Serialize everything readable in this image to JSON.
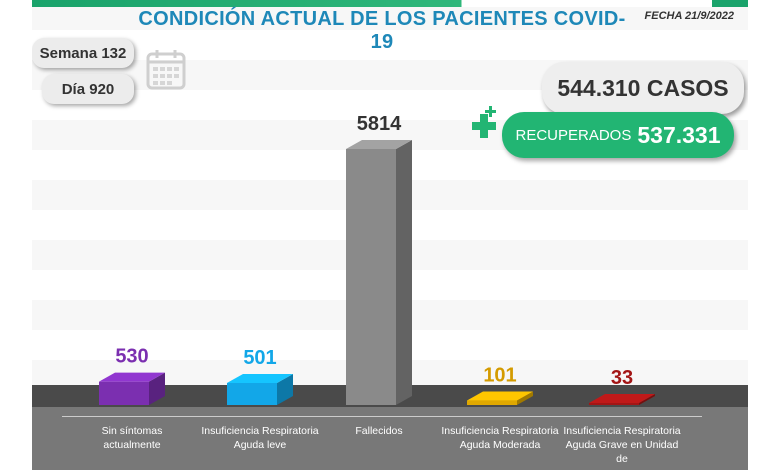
{
  "header": {
    "title": "CONDICIÓN ACTUAL DE LOS PACIENTES COVID-19",
    "fecha": "FECHA 21/9/2022"
  },
  "counters": {
    "semana": "Semana 132",
    "dia": "Día 920"
  },
  "totals": {
    "casos": "544.310 CASOS",
    "recuperados_label": "RECUPERADOS",
    "recuperados_value": "537.331"
  },
  "icons": {
    "calendar": "calendar-icon",
    "plus": "medical-plus-icon"
  },
  "colors": {
    "title": "#1e88b8",
    "recuperados": "#22b573"
  },
  "chart_data": {
    "type": "bar",
    "title": "",
    "xlabel": "",
    "ylabel": "",
    "categories": [
      "Sin síntomas actualmente",
      "Insuficiencia Respiratoria Aguda leve",
      "Fallecidos",
      "Insuficiencia Respiratoria Aguda Moderada",
      "Insuficiencia Respiratoria Aguda Grave en Unidad de"
    ],
    "values": [
      530,
      501,
      5814,
      101,
      33
    ],
    "value_labels": [
      "530",
      "501",
      "5814",
      "101",
      "33"
    ],
    "colors": [
      "#7b2fb0",
      "#12a7e8",
      "#8a8a8a",
      "#e0a800",
      "#a31515"
    ],
    "label_colors": [
      "#7b2fb0",
      "#12a7e8",
      "#333333",
      "#d49b00",
      "#a31515"
    ],
    "ylim": [
      0,
      5814
    ],
    "grid": false
  }
}
